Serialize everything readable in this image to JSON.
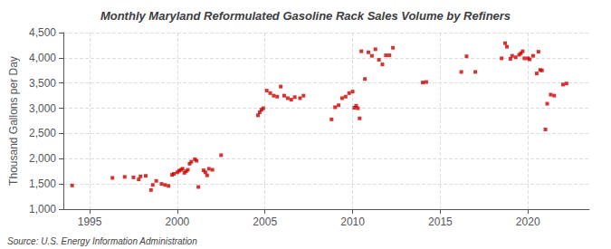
{
  "chart_data": {
    "type": "scatter",
    "title": "Monthly Maryland Reformulated Gasoline Rack Sales Volume by Refiners",
    "ylabel": "Thousand Gallons per Day",
    "source": "Source: U.S. Energy Information Administration",
    "color": "#CC0000",
    "marker": "square",
    "grid": true,
    "xlim": [
      1993.5,
      2023.5
    ],
    "xticks": [
      1995,
      2000,
      2005,
      2010,
      2015,
      2020
    ],
    "ylim": [
      1000,
      4500
    ],
    "yticks": [
      {
        "value": 1000,
        "label": "1,000"
      },
      {
        "value": 1500,
        "label": "1,500"
      },
      {
        "value": 2000,
        "label": "2,000"
      },
      {
        "value": 2500,
        "label": "2,500"
      },
      {
        "value": 3000,
        "label": "3,000"
      },
      {
        "value": 3500,
        "label": "3,500"
      },
      {
        "value": 4000,
        "label": "4,000"
      },
      {
        "value": 4500,
        "label": "4,500"
      }
    ],
    "x": [
      1994.0,
      1996.3,
      1997.0,
      1997.5,
      1997.8,
      1997.9,
      1998.2,
      1998.5,
      1998.6,
      1998.8,
      1999.1,
      1999.3,
      1999.5,
      1999.7,
      1999.8,
      2000.0,
      2000.1,
      2000.2,
      2000.3,
      2000.4,
      2000.5,
      2000.6,
      2000.7,
      2000.8,
      2001.0,
      2001.1,
      2001.2,
      2001.5,
      2001.6,
      2001.7,
      2001.8,
      2002.0,
      2002.5,
      2004.6,
      2004.7,
      2004.8,
      2004.9,
      2005.1,
      2005.3,
      2005.5,
      2005.7,
      2005.9,
      2006.1,
      2006.3,
      2006.5,
      2006.7,
      2007.0,
      2007.2,
      2008.8,
      2009.0,
      2009.2,
      2009.4,
      2009.6,
      2009.8,
      2010.0,
      2010.1,
      2010.2,
      2010.3,
      2010.4,
      2010.5,
      2010.7,
      2010.9,
      2011.1,
      2011.3,
      2011.5,
      2011.7,
      2011.9,
      2012.1,
      2012.3,
      2014.0,
      2014.2,
      2016.2,
      2016.5,
      2017.0,
      2018.5,
      2018.7,
      2018.8,
      2019.0,
      2019.1,
      2019.3,
      2019.5,
      2019.6,
      2019.7,
      2019.8,
      2020.0,
      2020.1,
      2020.3,
      2020.5,
      2020.6,
      2020.7,
      2020.8,
      2021.0,
      2021.1,
      2021.3,
      2021.5,
      2022.0,
      2022.2
    ],
    "values": [
      1470,
      1620,
      1640,
      1630,
      1590,
      1650,
      1660,
      1380,
      1480,
      1560,
      1500,
      1480,
      1460,
      1680,
      1700,
      1730,
      1760,
      1780,
      1800,
      1720,
      1750,
      1780,
      1900,
      1940,
      1990,
      1960,
      1440,
      1770,
      1730,
      1670,
      1800,
      1780,
      2070,
      2860,
      2920,
      2970,
      3000,
      3350,
      3300,
      3250,
      3230,
      3430,
      3250,
      3200,
      3170,
      3220,
      3200,
      3250,
      2780,
      3020,
      3060,
      3200,
      3230,
      3300,
      3330,
      3010,
      3050,
      3000,
      2800,
      4130,
      3580,
      4110,
      4040,
      4170,
      3960,
      3870,
      4050,
      4050,
      4200,
      3510,
      3520,
      3720,
      4030,
      3720,
      3990,
      4290,
      4220,
      3980,
      4040,
      4010,
      4060,
      4090,
      4130,
      3990,
      3990,
      3970,
      4040,
      3690,
      4120,
      3760,
      3750,
      2580,
      3090,
      3270,
      3250,
      3470,
      3490
    ]
  }
}
